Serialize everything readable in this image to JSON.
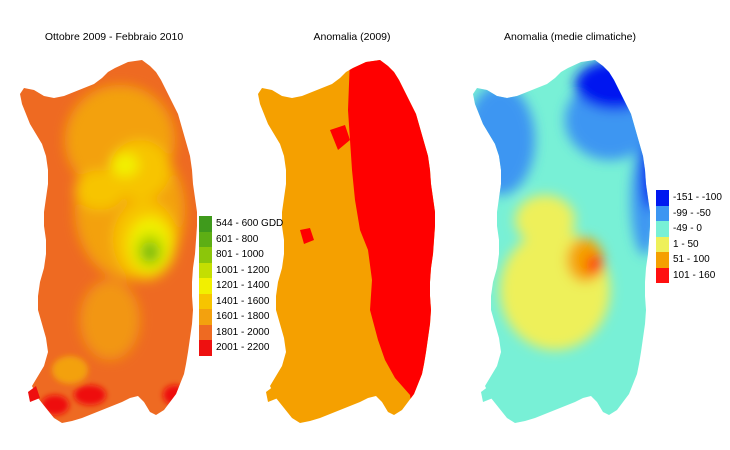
{
  "panels": [
    {
      "title": "Ottobre 2009 - Febbraio 2010"
    },
    {
      "title": "Anomalia (2009)"
    },
    {
      "title": "Anomalia (medie climatiche)"
    }
  ],
  "legend_gdd": [
    {
      "label": "544 - 600 GDD",
      "color": "#3f9a1c"
    },
    {
      "label": "601 - 800",
      "color": "#5dae14"
    },
    {
      "label": "801 - 1000",
      "color": "#8cc60a"
    },
    {
      "label": "1001 - 1200",
      "color": "#c4de02"
    },
    {
      "label": "1201 - 1400",
      "color": "#f2f000"
    },
    {
      "label": "1401 - 1600",
      "color": "#f7c400"
    },
    {
      "label": "1601 - 1800",
      "color": "#f3a10e"
    },
    {
      "label": "1801 - 2000",
      "color": "#ee6a22"
    },
    {
      "label": "2001 - 2200",
      "color": "#ee1010"
    }
  ],
  "legend_anomaly": [
    {
      "label": "-151 - -100",
      "color": "#0018f0"
    },
    {
      "label": "-99 - -50",
      "color": "#3c96f2"
    },
    {
      "label": "-49 - 0",
      "color": "#78f0d6"
    },
    {
      "label": "1 - 50",
      "color": "#eef05a"
    },
    {
      "label": "51 - 100",
      "color": "#f5a000"
    },
    {
      "label": "101 - 160",
      "color": "#ff1010"
    }
  ],
  "map_colors": {
    "orange": "#f5a000",
    "red": "#ff0000"
  }
}
